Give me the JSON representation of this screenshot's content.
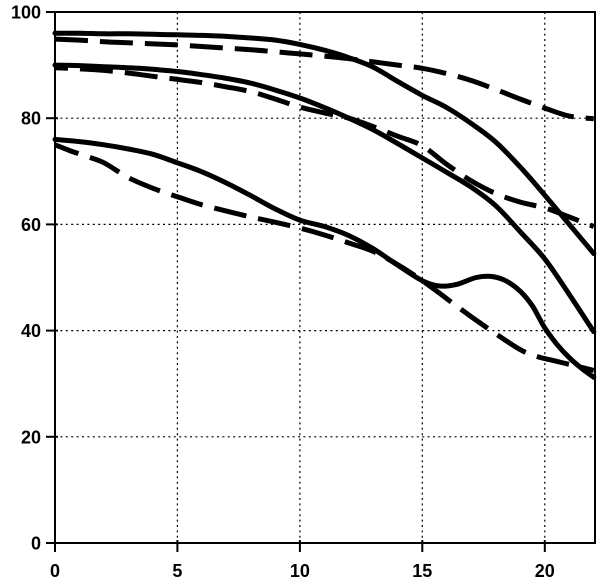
{
  "figure": {
    "background_color": "#ffffff",
    "line_color": "#000000",
    "grid_color": "#000000",
    "title": "",
    "legend": "none"
  },
  "chart_data": {
    "type": "line",
    "title": "",
    "xlabel": "",
    "ylabel": "",
    "xlim": [
      0,
      22.05
    ],
    "ylim": [
      0,
      100
    ],
    "x_ticks": [
      0,
      5,
      10,
      15,
      20
    ],
    "y_ticks": [
      0,
      20,
      40,
      60,
      80,
      100
    ],
    "x_tick_labels": [
      "0",
      "5",
      "10",
      "15",
      "20"
    ],
    "y_tick_labels": [
      "0",
      "20",
      "40",
      "60",
      "80",
      "100"
    ],
    "grid": "dotted, both directions, at every labeled tick",
    "frame": "full box",
    "legend_position": "none",
    "series": [
      {
        "name": "top-solid",
        "style": "solid",
        "color": "#000000",
        "points": [
          [
            0,
            96
          ],
          [
            1,
            96
          ],
          [
            2,
            95.9
          ],
          [
            3,
            95.9
          ],
          [
            4,
            95.8
          ],
          [
            5,
            95.7
          ],
          [
            6,
            95.6
          ],
          [
            7,
            95.4
          ],
          [
            8,
            95.1
          ],
          [
            9,
            94.7
          ],
          [
            10,
            93.9
          ],
          [
            11,
            92.8
          ],
          [
            12,
            91.4
          ],
          [
            13,
            89.6
          ],
          [
            14,
            86.9
          ],
          [
            15,
            84.3
          ],
          [
            16,
            82
          ],
          [
            17,
            79
          ],
          [
            18,
            75.5
          ],
          [
            19,
            70.8
          ],
          [
            20,
            65.5
          ],
          [
            21,
            60
          ],
          [
            22,
            54.5
          ]
        ]
      },
      {
        "name": "top-dashed",
        "style": "dashed",
        "color": "#000000",
        "points": [
          [
            0,
            94.9
          ],
          [
            1,
            94.7
          ],
          [
            2,
            94.4
          ],
          [
            3,
            94.2
          ],
          [
            4,
            94
          ],
          [
            5,
            93.8
          ],
          [
            6,
            93.5
          ],
          [
            7,
            93.2
          ],
          [
            8,
            92.9
          ],
          [
            9,
            92.5
          ],
          [
            10,
            92.1
          ],
          [
            11,
            91.7
          ],
          [
            12,
            91.2
          ],
          [
            13,
            90.6
          ],
          [
            14,
            90
          ],
          [
            15,
            89.4
          ],
          [
            16,
            88.4
          ],
          [
            17,
            87.1
          ],
          [
            18,
            85.4
          ],
          [
            19,
            83.6
          ],
          [
            20,
            81.9
          ],
          [
            21,
            80.4
          ],
          [
            22,
            79.9
          ]
        ]
      },
      {
        "name": "middle-solid",
        "style": "solid",
        "color": "#000000",
        "points": [
          [
            0,
            90
          ],
          [
            1,
            89.9
          ],
          [
            2,
            89.7
          ],
          [
            3,
            89.5
          ],
          [
            4,
            89.2
          ],
          [
            5,
            88.8
          ],
          [
            6,
            88.2
          ],
          [
            7,
            87.5
          ],
          [
            8,
            86.6
          ],
          [
            9,
            85.3
          ],
          [
            10,
            83.8
          ],
          [
            11,
            82
          ],
          [
            12,
            80
          ],
          [
            13,
            77.8
          ],
          [
            14,
            75.2
          ],
          [
            15,
            72.5
          ],
          [
            16,
            69.8
          ],
          [
            17,
            67
          ],
          [
            18,
            63.5
          ],
          [
            19,
            58.6
          ],
          [
            20,
            53.5
          ],
          [
            21,
            46.8
          ],
          [
            22,
            39.8
          ]
        ]
      },
      {
        "name": "middle-dashed",
        "style": "dashed",
        "color": "#000000",
        "points": [
          [
            0,
            89.5
          ],
          [
            1,
            89.3
          ],
          [
            2,
            89
          ],
          [
            3,
            88.5
          ],
          [
            4,
            87.9
          ],
          [
            5,
            87.3
          ],
          [
            6,
            86.7
          ],
          [
            7,
            85.9
          ],
          [
            8,
            85
          ],
          [
            9,
            83.6
          ],
          [
            10,
            82.1
          ],
          [
            11,
            81
          ],
          [
            12,
            80
          ],
          [
            13,
            78.4
          ],
          [
            14,
            76.6
          ],
          [
            15,
            74.8
          ],
          [
            16,
            71.3
          ],
          [
            17,
            68.2
          ],
          [
            18,
            65.8
          ],
          [
            19,
            64.2
          ],
          [
            20,
            63.1
          ],
          [
            21,
            61.4
          ],
          [
            22,
            59.6
          ]
        ]
      },
      {
        "name": "bottom-solid",
        "style": "solid",
        "color": "#000000",
        "points": [
          [
            0,
            76
          ],
          [
            1,
            75.6
          ],
          [
            2,
            75
          ],
          [
            3,
            74.2
          ],
          [
            4,
            73.2
          ],
          [
            5,
            71.6
          ],
          [
            6,
            69.9
          ],
          [
            7,
            67.8
          ],
          [
            8,
            65.4
          ],
          [
            9,
            62.9
          ],
          [
            10,
            60.8
          ],
          [
            11,
            59.6
          ],
          [
            12,
            57.9
          ],
          [
            13,
            55.4
          ],
          [
            14,
            52.3
          ],
          [
            15,
            49.4
          ],
          [
            15.7,
            48.4
          ],
          [
            16.4,
            48.7
          ],
          [
            17.2,
            50
          ],
          [
            17.8,
            50.2
          ],
          [
            18.4,
            49.4
          ],
          [
            19,
            47.4
          ],
          [
            19.5,
            44.6
          ],
          [
            20,
            40.5
          ],
          [
            20.5,
            37.4
          ],
          [
            21,
            34.9
          ],
          [
            21.5,
            32.9
          ],
          [
            22,
            31.2
          ]
        ]
      },
      {
        "name": "bottom-dashed",
        "style": "dashed",
        "color": "#000000",
        "points": [
          [
            0,
            75
          ],
          [
            0.6,
            73.9
          ],
          [
            1.3,
            72.8
          ],
          [
            2,
            71.6
          ],
          [
            3,
            68.8
          ],
          [
            4,
            66.8
          ],
          [
            5,
            65.2
          ],
          [
            6,
            63.7
          ],
          [
            7,
            62.5
          ],
          [
            8,
            61.4
          ],
          [
            9,
            60.4
          ],
          [
            10,
            59.3
          ],
          [
            11,
            58
          ],
          [
            12,
            56.5
          ],
          [
            13,
            54.9
          ],
          [
            14,
            52.4
          ],
          [
            15,
            49.4
          ],
          [
            16,
            46
          ],
          [
            17,
            42.6
          ],
          [
            18,
            39.4
          ],
          [
            19,
            36.4
          ],
          [
            19.7,
            35.1
          ],
          [
            20.5,
            34.2
          ],
          [
            21.3,
            33.3
          ],
          [
            22,
            32.5
          ]
        ]
      }
    ]
  }
}
